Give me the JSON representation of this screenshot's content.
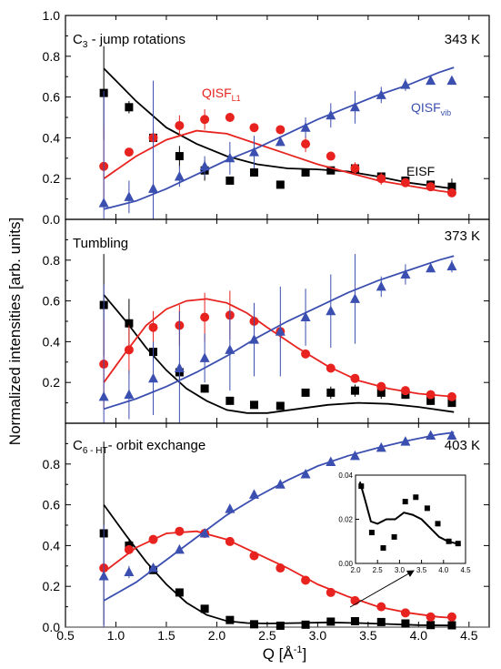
{
  "figure": {
    "ylabel": "Normalized intensities [arb. units]",
    "xlabel_main": "Q [Å",
    "xlabel_sup": "-1",
    "xlabel_close": "]",
    "x_ticks": [
      "0.5",
      "1.0",
      "1.5",
      "2.0",
      "2.5",
      "3.0",
      "3.5",
      "4.0",
      "4.5"
    ],
    "colors": {
      "eisf": "#000000",
      "qisf_l1": "#e8231f",
      "qisf_vib": "#3b4fb0",
      "axis": "#000000"
    }
  },
  "chart_data": [
    {
      "type": "scatter",
      "panel_title_main": "C",
      "panel_title_sub": "3",
      "panel_title_rest": " - jump rotations",
      "temperature": "343 K",
      "xlim": [
        0.5,
        4.7
      ],
      "ylim": [
        0.0,
        1.0
      ],
      "y_ticks": [
        "1.0",
        "0.8",
        "0.6",
        "0.4",
        "0.2",
        "0.0"
      ],
      "annotations": [
        {
          "main": "QISF",
          "sub": "L1",
          "series": "qisf_l1"
        },
        {
          "main": "QISF",
          "sub": "vib",
          "series": "qisf_vib"
        },
        {
          "main": "EISF",
          "sub": "",
          "series": "eisf"
        }
      ],
      "x": [
        0.88,
        1.13,
        1.37,
        1.63,
        1.88,
        2.13,
        2.37,
        2.63,
        2.88,
        3.13,
        3.37,
        3.63,
        3.87,
        4.12,
        4.33
      ],
      "series": [
        {
          "name": "EISF",
          "key": "eisf",
          "marker": "square",
          "values": [
            0.62,
            0.55,
            0.4,
            0.31,
            0.24,
            0.19,
            0.23,
            0.17,
            0.23,
            0.24,
            0.25,
            0.21,
            0.19,
            0.17,
            0.16
          ],
          "err": [
            0.23,
            0.03,
            0.02,
            0.05,
            0.05,
            0,
            0,
            0,
            0,
            0,
            0.02,
            0.02,
            0.02,
            0.01,
            0.04
          ],
          "fit_x": [
            0.88,
            1.2,
            1.5,
            1.8,
            2.1,
            2.4,
            2.7,
            3.0,
            3.3,
            3.6,
            3.9,
            4.2,
            4.35
          ],
          "fit_y": [
            0.74,
            0.58,
            0.45,
            0.37,
            0.31,
            0.27,
            0.25,
            0.245,
            0.235,
            0.21,
            0.18,
            0.16,
            0.15
          ]
        },
        {
          "name": "QISF_L1",
          "key": "qisf_l1",
          "marker": "circle",
          "values": [
            0.26,
            0.33,
            0.4,
            0.46,
            0.49,
            0.5,
            0.45,
            0.44,
            0.37,
            0.31,
            0.25,
            0.2,
            0.18,
            0.16,
            0.13
          ],
          "err": [
            0.2,
            0.02,
            0.05,
            0.05,
            0.05,
            0.02,
            0.02,
            0.02,
            0.04,
            0.02,
            0.03,
            0.03,
            0.02,
            0.02,
            0.02
          ],
          "fit_x": [
            0.88,
            1.2,
            1.5,
            1.8,
            2.1,
            2.4,
            2.7,
            3.0,
            3.3,
            3.6,
            3.9,
            4.2,
            4.35
          ],
          "fit_y": [
            0.2,
            0.31,
            0.39,
            0.435,
            0.42,
            0.37,
            0.32,
            0.27,
            0.23,
            0.19,
            0.165,
            0.14,
            0.13
          ]
        },
        {
          "name": "QISF_vib",
          "key": "qisf_vib",
          "marker": "triangle",
          "values": [
            0.08,
            0.11,
            0.15,
            0.21,
            0.26,
            0.3,
            0.33,
            0.38,
            0.45,
            0.51,
            0.55,
            0.61,
            0.66,
            0.68,
            0.68
          ],
          "err": [
            0.55,
            0.08,
            0.53,
            0.05,
            0.05,
            0.08,
            0.08,
            0.02,
            0.05,
            0.06,
            0.08,
            0.04,
            0.03,
            0.02,
            0.02
          ],
          "fit_x": [
            0.88,
            1.2,
            1.5,
            1.8,
            2.1,
            2.4,
            2.7,
            3.0,
            3.3,
            3.6,
            3.9,
            4.2,
            4.35
          ],
          "fit_y": [
            0.05,
            0.09,
            0.15,
            0.22,
            0.29,
            0.35,
            0.42,
            0.49,
            0.55,
            0.61,
            0.66,
            0.72,
            0.745
          ]
        }
      ]
    },
    {
      "type": "scatter",
      "panel_title_main": "Tumbling",
      "panel_title_sub": "",
      "panel_title_rest": "",
      "temperature": "373 K",
      "xlim": [
        0.5,
        4.7
      ],
      "ylim": [
        0.0,
        1.0
      ],
      "y_ticks": [
        "0.8",
        "0.6",
        "0.4",
        "0.2"
      ],
      "annotations": [],
      "x": [
        0.88,
        1.13,
        1.37,
        1.63,
        1.88,
        2.13,
        2.37,
        2.63,
        2.88,
        3.13,
        3.37,
        3.63,
        3.87,
        4.12,
        4.33
      ],
      "series": [
        {
          "name": "EISF",
          "key": "eisf",
          "marker": "square",
          "values": [
            0.58,
            0.49,
            0.35,
            0.25,
            0.17,
            0.11,
            0.09,
            0.085,
            0.15,
            0.15,
            0.16,
            0.15,
            0.14,
            0.11,
            0.1
          ],
          "err": [
            0.25,
            0.12,
            0.05,
            0.04,
            0.02,
            0,
            0,
            0,
            0.02,
            0.03,
            0.03,
            0.03,
            0.02,
            0.02,
            0.02
          ],
          "fit_x": [
            0.88,
            1.1,
            1.3,
            1.5,
            1.7,
            1.9,
            2.1,
            2.3,
            2.5,
            2.8,
            3.1,
            3.4,
            3.7,
            4.0,
            4.35
          ],
          "fit_y": [
            0.63,
            0.5,
            0.37,
            0.26,
            0.17,
            0.11,
            0.065,
            0.05,
            0.05,
            0.07,
            0.09,
            0.1,
            0.095,
            0.08,
            0.055
          ]
        },
        {
          "name": "QISF_L1",
          "key": "qisf_l1",
          "marker": "circle",
          "values": [
            0.29,
            0.36,
            0.47,
            0.48,
            0.52,
            0.53,
            0.5,
            0.45,
            0.34,
            0.27,
            0.22,
            0.18,
            0.16,
            0.14,
            0.13
          ],
          "err": [
            0.22,
            0.12,
            0.08,
            0.1,
            0.12,
            0.12,
            0.05,
            0.05,
            0.02,
            0.02,
            0.02,
            0.02,
            0.02,
            0.02,
            0.02
          ],
          "fit_x": [
            0.88,
            1.1,
            1.3,
            1.5,
            1.7,
            1.9,
            2.1,
            2.3,
            2.5,
            2.8,
            3.1,
            3.4,
            3.7,
            4.0,
            4.35
          ],
          "fit_y": [
            0.2,
            0.35,
            0.48,
            0.56,
            0.6,
            0.61,
            0.59,
            0.54,
            0.47,
            0.37,
            0.28,
            0.21,
            0.17,
            0.145,
            0.13
          ]
        },
        {
          "name": "QISF_vib",
          "key": "qisf_vib",
          "marker": "triangle",
          "values": [
            0.13,
            0.14,
            0.22,
            0.27,
            0.32,
            0.36,
            0.41,
            0.45,
            0.52,
            0.55,
            0.61,
            0.67,
            0.73,
            0.76,
            0.77
          ],
          "err": [
            0.55,
            0.12,
            0.18,
            0.28,
            0.12,
            0.2,
            0.18,
            0.22,
            0.14,
            0.18,
            0.22,
            0.05,
            0.05,
            0.02,
            0.03
          ],
          "fit_x": [
            0.88,
            1.2,
            1.5,
            1.8,
            2.1,
            2.4,
            2.7,
            3.0,
            3.3,
            3.6,
            3.9,
            4.2,
            4.35
          ],
          "fit_y": [
            0.07,
            0.12,
            0.18,
            0.25,
            0.33,
            0.42,
            0.5,
            0.57,
            0.64,
            0.7,
            0.75,
            0.8,
            0.82
          ]
        }
      ]
    },
    {
      "type": "scatter",
      "panel_title_main": "C",
      "panel_title_sub": "6 - HT",
      "panel_title_rest": "- orbit exchange",
      "temperature": "403 K",
      "xlim": [
        0.5,
        4.7
      ],
      "ylim": [
        0.0,
        1.0
      ],
      "y_ticks": [
        "0.8",
        "0.6",
        "0.4",
        "0.2",
        "0.0"
      ],
      "annotations": [],
      "x": [
        0.88,
        1.13,
        1.37,
        1.63,
        1.88,
        2.13,
        2.37,
        2.63,
        2.88,
        3.13,
        3.37,
        3.63,
        3.87,
        4.12,
        4.33
      ],
      "series": [
        {
          "name": "EISF",
          "key": "eisf",
          "marker": "square",
          "values": [
            0.46,
            0.4,
            0.28,
            0.17,
            0.09,
            0.035,
            0.014,
            0.007,
            0.012,
            0.027,
            0.029,
            0.025,
            0.018,
            0.01,
            0.009
          ],
          "err": [
            0.45,
            0.03,
            0,
            0,
            0,
            0,
            0,
            0,
            0,
            0,
            0,
            0,
            0,
            0,
            0
          ],
          "fit_x": [
            0.88,
            1.1,
            1.3,
            1.5,
            1.7,
            1.9,
            2.1,
            2.3,
            2.5,
            2.8,
            3.1,
            3.4,
            3.7,
            4.0,
            4.35
          ],
          "fit_y": [
            0.6,
            0.45,
            0.32,
            0.21,
            0.12,
            0.06,
            0.03,
            0.02,
            0.018,
            0.02,
            0.023,
            0.02,
            0.015,
            0.01,
            0.008
          ]
        },
        {
          "name": "QISF_L1",
          "key": "qisf_l1",
          "marker": "circle",
          "values": [
            0.29,
            0.38,
            0.43,
            0.47,
            0.46,
            0.42,
            0.35,
            0.29,
            0.23,
            0.17,
            0.13,
            0.1,
            0.07,
            0.05,
            0.05
          ],
          "err": [
            0,
            0,
            0,
            0,
            0,
            0,
            0,
            0,
            0,
            0,
            0,
            0,
            0,
            0,
            0
          ],
          "fit_x": [
            0.88,
            1.2,
            1.5,
            1.8,
            2.1,
            2.4,
            2.7,
            3.0,
            3.3,
            3.6,
            3.9,
            4.2,
            4.35
          ],
          "fit_y": [
            0.27,
            0.39,
            0.46,
            0.47,
            0.43,
            0.36,
            0.29,
            0.21,
            0.15,
            0.1,
            0.07,
            0.05,
            0.045
          ]
        },
        {
          "name": "QISF_vib",
          "key": "qisf_vib",
          "marker": "triangle",
          "values": [
            0.25,
            0.27,
            0.29,
            0.38,
            0.46,
            0.58,
            0.65,
            0.7,
            0.75,
            0.81,
            0.84,
            0.88,
            0.91,
            0.94,
            0.94
          ],
          "err": [
            0.25,
            0.03,
            0,
            0,
            0,
            0,
            0,
            0,
            0,
            0,
            0,
            0,
            0,
            0,
            0
          ],
          "fit_x": [
            0.88,
            1.2,
            1.5,
            1.8,
            2.1,
            2.4,
            2.7,
            3.0,
            3.3,
            3.6,
            3.9,
            4.2,
            4.35
          ],
          "fit_y": [
            0.13,
            0.22,
            0.33,
            0.44,
            0.55,
            0.64,
            0.72,
            0.79,
            0.84,
            0.88,
            0.915,
            0.945,
            0.955
          ]
        }
      ]
    },
    {
      "type": "scatter",
      "role": "inset (EISF, 403 K)",
      "xlim": [
        2.0,
        4.5
      ],
      "ylim": [
        0.0,
        0.04
      ],
      "x_ticks": [
        "2.0",
        "2.5",
        "3.0",
        "3.5",
        "4.0",
        "4.5"
      ],
      "y_ticks": [
        "0.04",
        "0.02",
        "0.00"
      ],
      "series": [
        {
          "name": "EISF",
          "key": "eisf",
          "marker": "square",
          "x": [
            2.13,
            2.37,
            2.63,
            2.88,
            3.13,
            3.37,
            3.63,
            3.87,
            4.12,
            4.33
          ],
          "values": [
            0.035,
            0.014,
            0.007,
            0.012,
            0.028,
            0.03,
            0.025,
            0.018,
            0.01,
            0.009
          ],
          "fit_x": [
            2.1,
            2.2,
            2.35,
            2.5,
            2.7,
            2.9,
            3.1,
            3.3,
            3.5,
            3.7,
            3.9,
            4.1,
            4.3
          ],
          "fit_y": [
            0.037,
            0.03,
            0.019,
            0.018,
            0.02,
            0.02,
            0.023,
            0.022,
            0.02,
            0.016,
            0.012,
            0.01,
            0.009
          ]
        }
      ]
    }
  ]
}
